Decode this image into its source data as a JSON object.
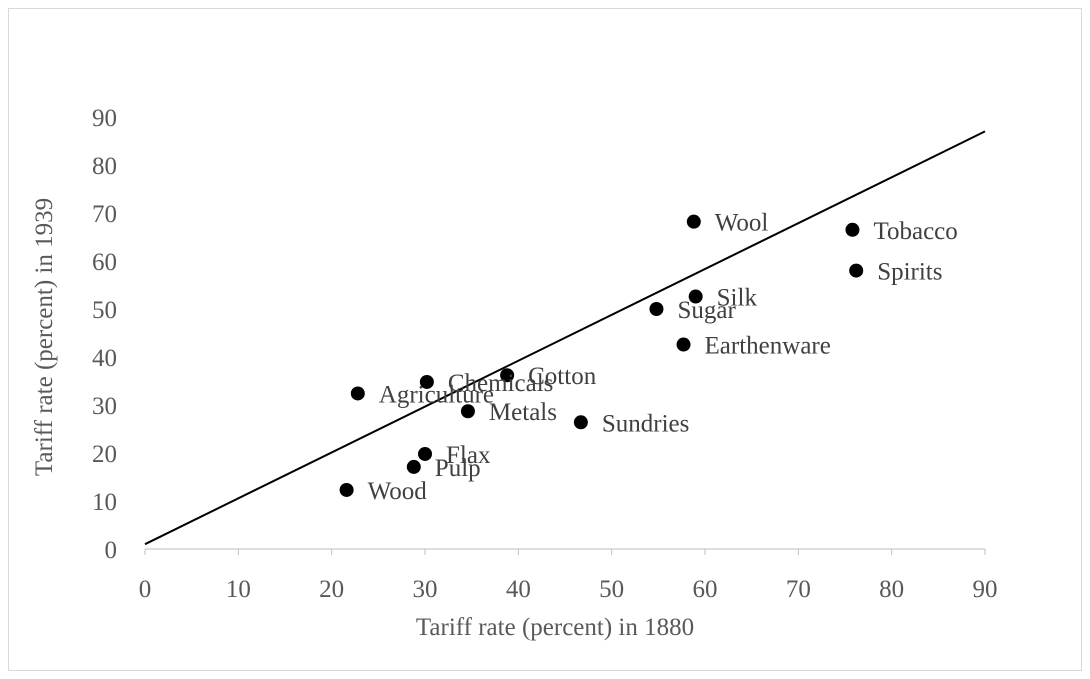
{
  "chart_data": {
    "type": "scatter",
    "title": "",
    "xlabel": "Tariff rate (percent) in 1880",
    "ylabel": "Tariff rate (percent) in 1939",
    "xlim": [
      0,
      90
    ],
    "ylim": [
      0,
      90
    ],
    "x_ticks": [
      "0",
      "10",
      "20",
      "30",
      "40",
      "50",
      "60",
      "70",
      "80",
      "90"
    ],
    "y_ticks": [
      "0",
      "10",
      "20",
      "30",
      "40",
      "50",
      "60",
      "70",
      "80",
      "90"
    ],
    "grid": false,
    "legend": "none",
    "marker_color": "#000000",
    "reference_line": {
      "from": [
        0,
        1
      ],
      "to": [
        90,
        87
      ]
    },
    "points": [
      {
        "label": "Wool",
        "x": 58.8,
        "y": 68.2
      },
      {
        "label": "Tobacco",
        "x": 75.8,
        "y": 66.5
      },
      {
        "label": "Spirits",
        "x": 76.2,
        "y": 58.0
      },
      {
        "label": "Silk",
        "x": 59.0,
        "y": 52.6
      },
      {
        "label": "Sugar",
        "x": 54.8,
        "y": 50.0
      },
      {
        "label": "Earthenware",
        "x": 57.7,
        "y": 42.6
      },
      {
        "label": "Cotton",
        "x": 38.8,
        "y": 36.2
      },
      {
        "label": "Chemicals",
        "x": 30.2,
        "y": 34.8
      },
      {
        "label": "Agriculture",
        "x": 22.8,
        "y": 32.4
      },
      {
        "label": "Metals",
        "x": 34.6,
        "y": 28.7
      },
      {
        "label": "Sundries",
        "x": 46.7,
        "y": 26.4
      },
      {
        "label": "Flax",
        "x": 30.0,
        "y": 19.8
      },
      {
        "label": "Pulp",
        "x": 28.8,
        "y": 17.1
      },
      {
        "label": "Wood",
        "x": 21.6,
        "y": 12.3
      }
    ]
  }
}
